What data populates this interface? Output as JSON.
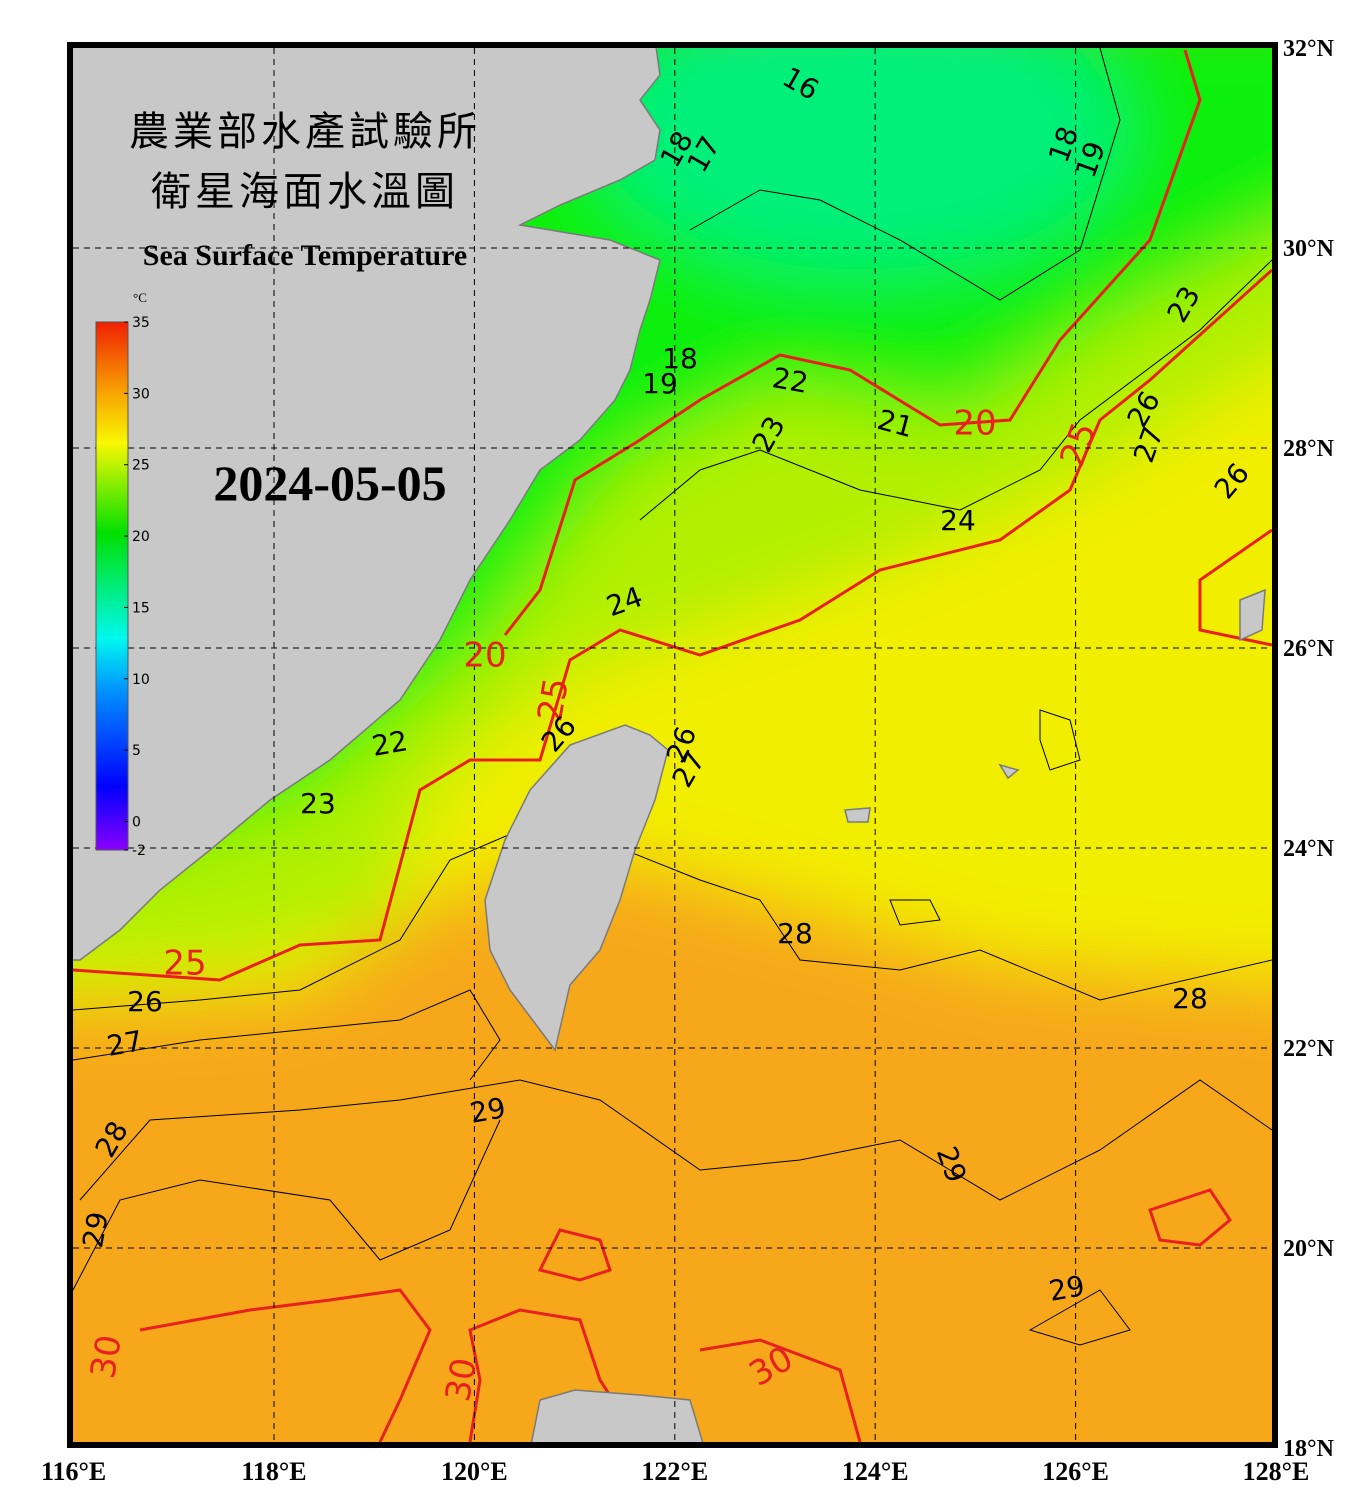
{
  "header": {
    "title_line1": "農業部水產試驗所",
    "title_line2": "衛星海面水溫圖",
    "subtitle": "Sea Surface Temperature",
    "date": "2024-05-05"
  },
  "colorbar": {
    "unit": "°C",
    "range": [
      -2,
      35
    ],
    "ticks": [
      35,
      30,
      25,
      20,
      15,
      10,
      5,
      0,
      -2
    ]
  },
  "axes": {
    "lon_labels": [
      "116°E",
      "118°E",
      "120°E",
      "122°E",
      "124°E",
      "126°E",
      "128°E"
    ],
    "lat_labels": [
      "32°N",
      "30°N",
      "28°N",
      "26°N",
      "24°N",
      "22°N",
      "20°N",
      "18°N"
    ]
  },
  "contour_labels": [
    16,
    17,
    18,
    18,
    19,
    18,
    19,
    22,
    21,
    20,
    23,
    25,
    26,
    27,
    23,
    26,
    24,
    24,
    20,
    25,
    26,
    22,
    23,
    26,
    27,
    28,
    28,
    25,
    26,
    27,
    29,
    28,
    29,
    29,
    29,
    30,
    30,
    30
  ]
}
